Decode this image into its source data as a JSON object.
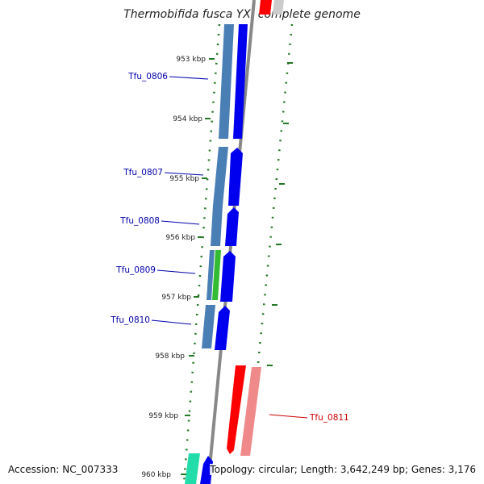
{
  "title": "Thermobifida fusca YX, complete genome",
  "footer": {
    "accession": "Accession: NC_007333",
    "summary": "Topology: circular; Length: 3,642,249 bp; Genes: 3,176"
  },
  "ticks": [
    "953 kbp",
    "954 kbp",
    "955 kbp",
    "956 kbp",
    "957 kbp",
    "958 kbp",
    "959 kbp",
    "960 kbp"
  ],
  "genes": [
    {
      "id": "Tfu_0806",
      "strand": "forward",
      "color": "#0000ee"
    },
    {
      "id": "Tfu_0807",
      "strand": "forward",
      "color": "#0000ee"
    },
    {
      "id": "Tfu_0808",
      "strand": "forward",
      "color": "#0000ee"
    },
    {
      "id": "Tfu_0809",
      "strand": "forward",
      "color": "#0000ee"
    },
    {
      "id": "Tfu_0810",
      "strand": "forward",
      "color": "#0000ee"
    },
    {
      "id": "Tfu_0811",
      "strand": "reverse",
      "color": "#ff0000"
    }
  ],
  "colors": {
    "forward_label": "#0000aa",
    "reverse_label": "#cc0000",
    "feature_blue": "#4a7fb5",
    "feature_green": "#33bb33",
    "feature_teal": "#22ddaa",
    "feature_pink": "#f08a8a",
    "dots": "#227722",
    "backbone": "#888888"
  }
}
